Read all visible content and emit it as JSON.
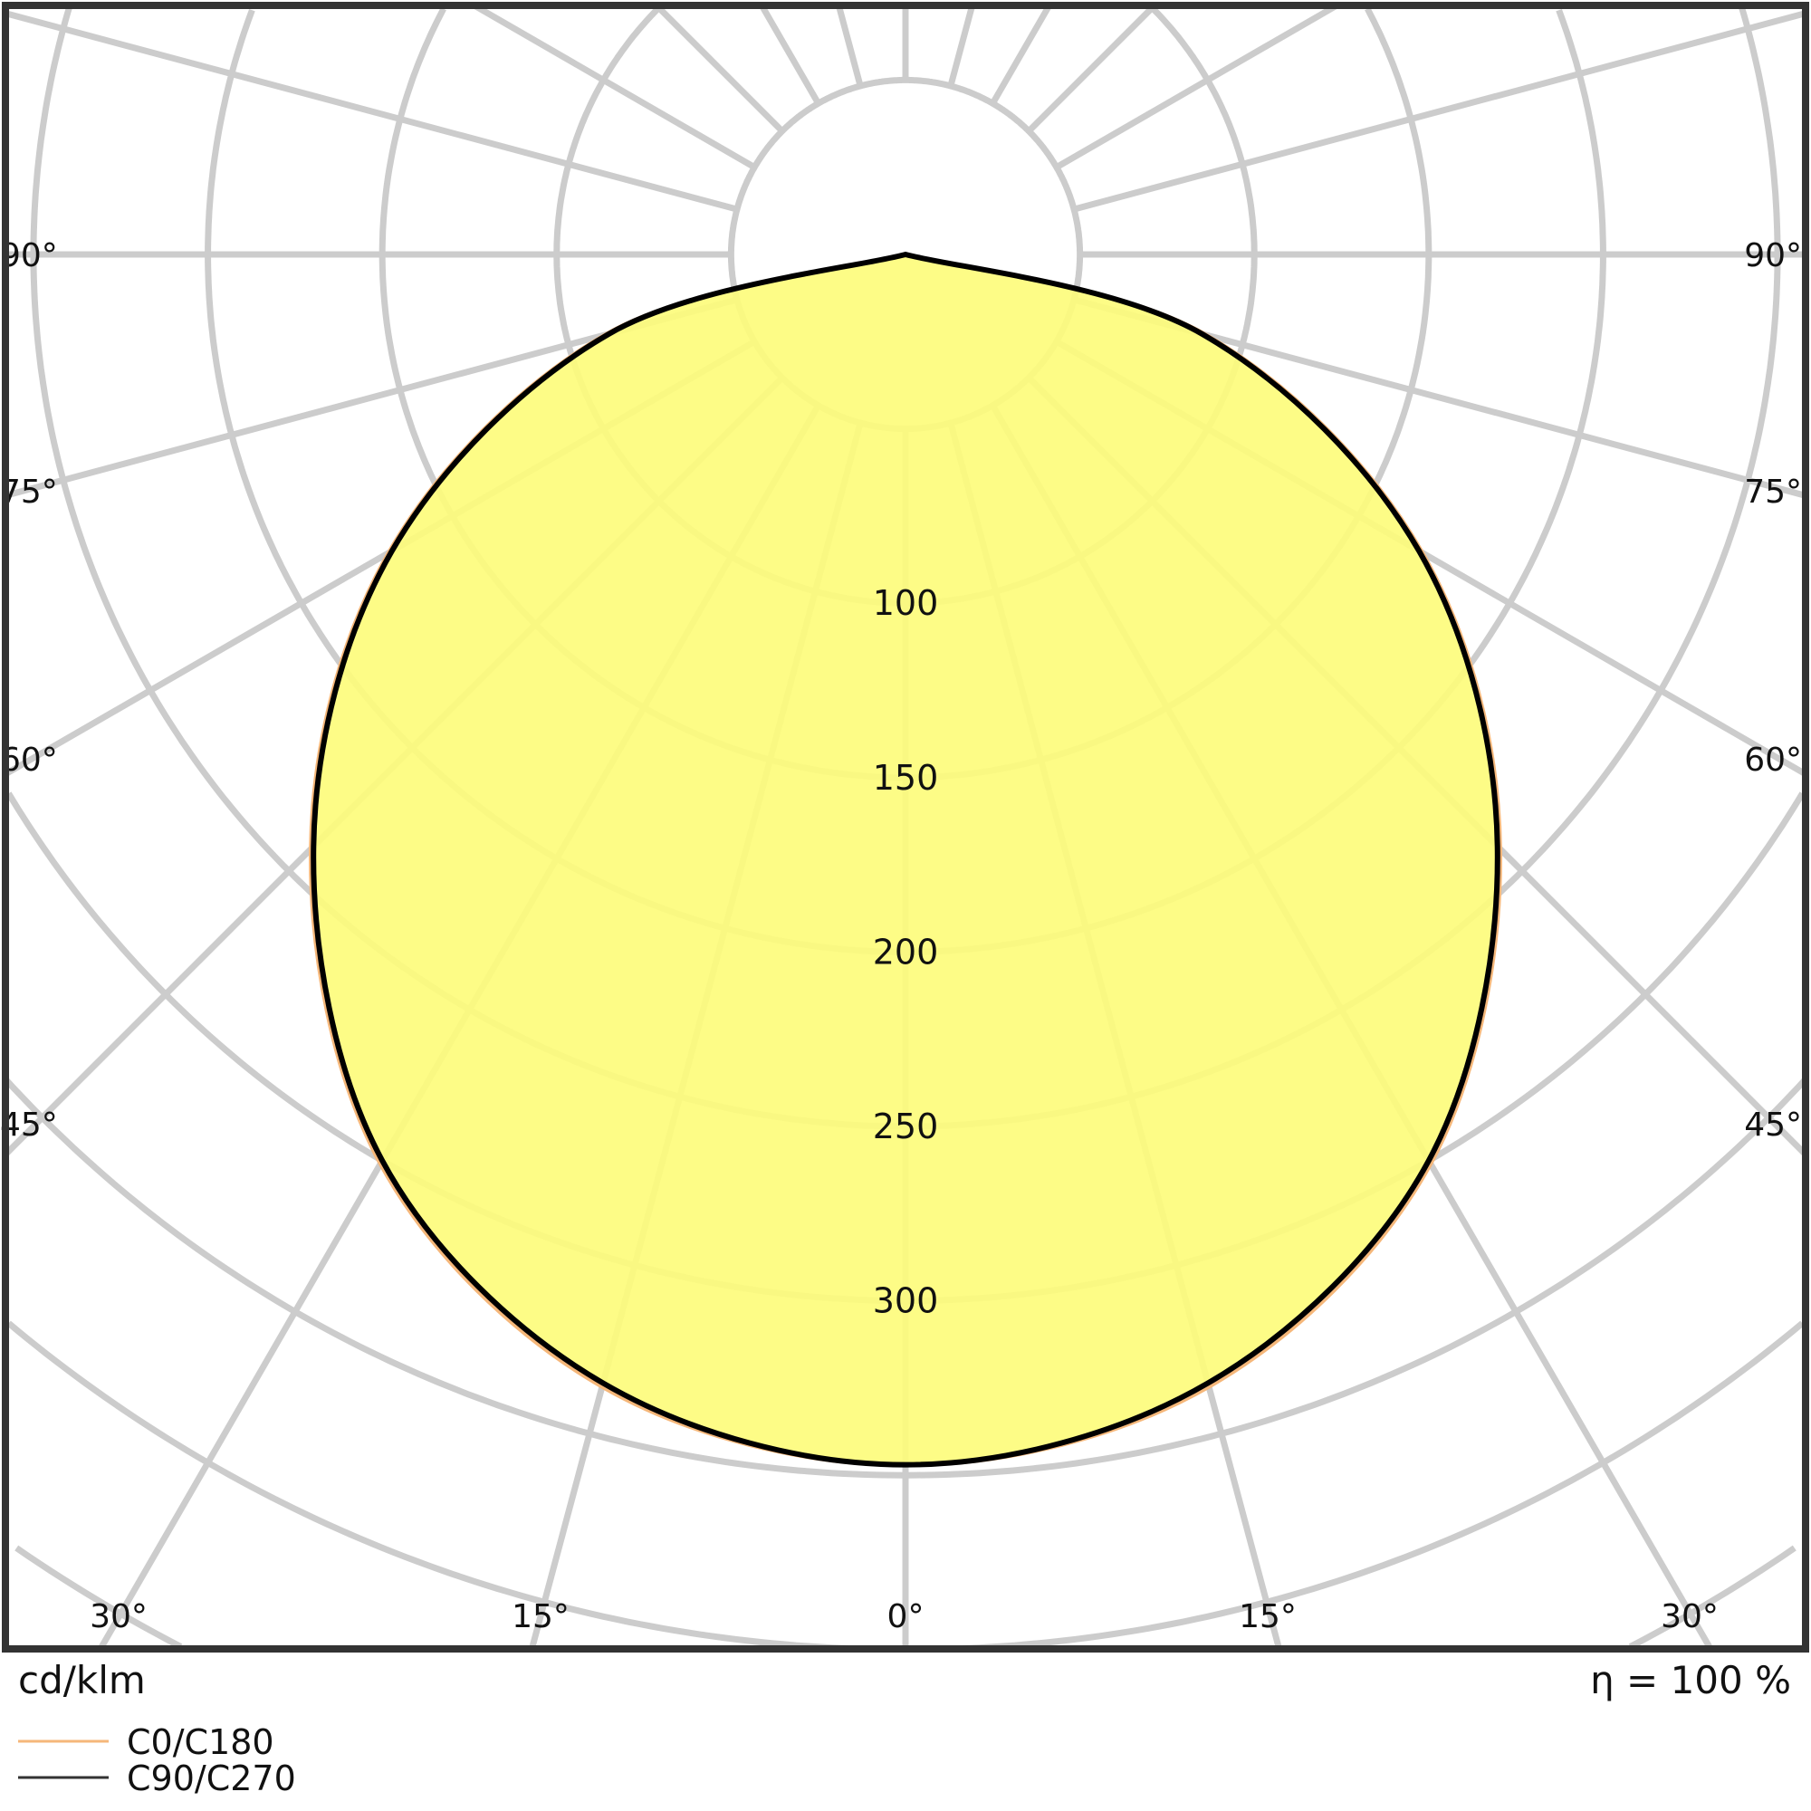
{
  "chart_data": {
    "type": "polar",
    "unit_label": "cd/klm",
    "efficiency_label": "η = 100 %",
    "radial_ticks": [
      100,
      150,
      200,
      250,
      300
    ],
    "radial_grid": [
      50,
      100,
      150,
      200,
      250,
      300,
      350,
      400,
      450,
      500,
      550,
      600
    ],
    "angle_labels_side": [
      "90°",
      "75°",
      "60°",
      "45°"
    ],
    "angle_labels_bottom": [
      "30°",
      "15°",
      "0°",
      "15°",
      "30°"
    ],
    "grid": true,
    "legend_position": "bottom-left",
    "angles_deg": [
      0,
      15,
      30,
      45,
      60,
      75,
      90
    ],
    "series": [
      {
        "name": "C0/C180",
        "color": "#f5b77a",
        "values": [
          347,
          336,
          301,
          241,
          171,
          89,
          0
        ]
      },
      {
        "name": "C90/C270",
        "color": "#000000",
        "values": [
          347,
          335,
          300,
          240,
          170,
          88,
          0
        ]
      }
    ],
    "fill_color": "#fdfc7c",
    "grid_color": "#cccccc"
  }
}
